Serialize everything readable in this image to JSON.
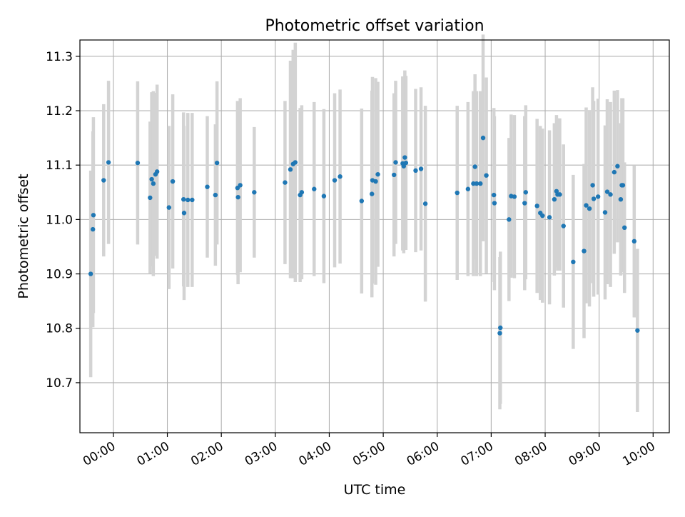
{
  "chart_data": {
    "type": "scatter",
    "title": "Photometric offset variation",
    "xlabel": "UTC time",
    "ylabel": "Photometric offset",
    "grid": true,
    "xlim": [
      -0.62,
      10.3
    ],
    "ylim": [
      10.608,
      11.33
    ],
    "x_unit": "hours since 00:00 UTC",
    "xticks": [
      {
        "value": 0,
        "label": "00:00"
      },
      {
        "value": 1,
        "label": "01:00"
      },
      {
        "value": 2,
        "label": "02:00"
      },
      {
        "value": 3,
        "label": "03:00"
      },
      {
        "value": 4,
        "label": "04:00"
      },
      {
        "value": 5,
        "label": "05:00"
      },
      {
        "value": 6,
        "label": "06:00"
      },
      {
        "value": 7,
        "label": "07:00"
      },
      {
        "value": 8,
        "label": "08:00"
      },
      {
        "value": 9,
        "label": "09:00"
      },
      {
        "value": 10,
        "label": "10:00"
      }
    ],
    "yticks": [
      {
        "value": 10.7,
        "label": "10.7"
      },
      {
        "value": 10.8,
        "label": "10.8"
      },
      {
        "value": 10.9,
        "label": "10.9"
      },
      {
        "value": 11.0,
        "label": "11.0"
      },
      {
        "value": 11.1,
        "label": "11.1"
      },
      {
        "value": 11.2,
        "label": "11.2"
      },
      {
        "value": 11.3,
        "label": "11.3"
      }
    ],
    "colors": {
      "point": "#1f77b4",
      "errorbar": "#d3d3d3",
      "grid": "#b0b0b0",
      "axes": "#000000"
    },
    "series": [
      {
        "name": "Photometric offset",
        "x": [
          -0.42,
          -0.38,
          -0.37,
          -0.18,
          -0.09,
          0.45,
          0.68,
          0.71,
          0.74,
          0.78,
          0.81,
          1.03,
          1.1,
          1.3,
          1.31,
          1.38,
          1.46,
          1.74,
          1.89,
          1.92,
          2.3,
          2.31,
          2.35,
          2.61,
          3.18,
          3.28,
          3.33,
          3.37,
          3.46,
          3.49,
          3.72,
          3.9,
          4.1,
          4.2,
          4.6,
          4.79,
          4.8,
          4.86,
          4.9,
          5.2,
          5.23,
          5.36,
          5.38,
          5.4,
          5.42,
          5.6,
          5.7,
          5.78,
          6.37,
          6.57,
          6.67,
          6.7,
          6.73,
          6.8,
          6.85,
          6.91,
          7.05,
          7.06,
          7.16,
          7.17,
          7.33,
          7.37,
          7.43,
          7.62,
          7.64,
          7.85,
          7.91,
          7.95,
          8.08,
          8.17,
          8.21,
          8.23,
          8.27,
          8.34,
          8.52,
          8.72,
          8.76,
          8.82,
          8.88,
          8.9,
          8.98,
          9.11,
          9.15,
          9.21,
          9.28,
          9.34,
          9.4,
          9.42,
          9.44,
          9.47,
          9.65,
          9.71
        ],
        "y": [
          10.9,
          10.982,
          11.008,
          11.072,
          11.105,
          11.104,
          11.04,
          11.074,
          11.066,
          11.083,
          11.088,
          11.022,
          11.07,
          11.037,
          11.012,
          11.036,
          11.036,
          11.06,
          11.045,
          11.104,
          11.058,
          11.041,
          11.063,
          11.05,
          11.068,
          11.092,
          11.102,
          11.105,
          11.045,
          11.05,
          11.056,
          11.043,
          11.072,
          11.079,
          11.034,
          11.047,
          11.072,
          11.07,
          11.083,
          11.082,
          11.105,
          11.103,
          11.098,
          11.114,
          11.104,
          11.09,
          11.093,
          11.029,
          11.049,
          11.056,
          11.066,
          11.097,
          11.066,
          11.066,
          11.15,
          11.081,
          11.045,
          11.03,
          10.791,
          10.801,
          11.0,
          11.043,
          11.042,
          11.03,
          11.05,
          11.025,
          11.012,
          11.007,
          11.004,
          11.037,
          11.052,
          11.046,
          11.046,
          10.988,
          10.922,
          10.942,
          11.026,
          11.02,
          11.063,
          11.038,
          11.042,
          11.013,
          11.051,
          11.046,
          11.087,
          11.098,
          11.037,
          11.063,
          11.063,
          10.985,
          10.96,
          10.796
        ],
        "yerr": [
          0.19,
          0.18,
          0.18,
          0.14,
          0.15,
          0.15,
          0.14,
          0.16,
          0.17,
          0.15,
          0.16,
          0.15,
          0.16,
          0.16,
          0.16,
          0.16,
          0.16,
          0.13,
          0.13,
          0.15,
          0.16,
          0.16,
          0.16,
          0.12,
          0.15,
          0.2,
          0.21,
          0.22,
          0.16,
          0.16,
          0.16,
          0.16,
          0.16,
          0.16,
          0.17,
          0.19,
          0.19,
          0.19,
          0.17,
          0.15,
          0.15,
          0.16,
          0.16,
          0.16,
          0.16,
          0.15,
          0.15,
          0.18,
          0.16,
          0.16,
          0.17,
          0.17,
          0.17,
          0.17,
          0.19,
          0.18,
          0.16,
          0.16,
          0.14,
          0.14,
          0.15,
          0.15,
          0.15,
          0.16,
          0.16,
          0.16,
          0.16,
          0.16,
          0.16,
          0.14,
          0.14,
          0.14,
          0.14,
          0.15,
          0.16,
          0.16,
          0.18,
          0.18,
          0.18,
          0.18,
          0.18,
          0.16,
          0.17,
          0.17,
          0.15,
          0.14,
          0.14,
          0.16,
          0.16,
          0.12,
          0.14,
          0.15
        ]
      }
    ]
  }
}
